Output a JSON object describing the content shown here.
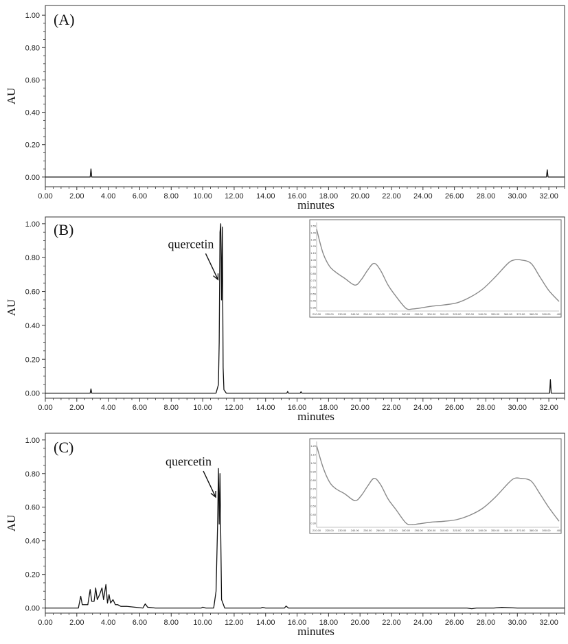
{
  "chart_data": [
    {
      "type": "line",
      "panel_label": "(A)",
      "xlabel": "minutes",
      "ylabel": "AU",
      "xlim": [
        0,
        33
      ],
      "ylim": [
        -0.06,
        1.06
      ],
      "x_ticks": [
        "0.00",
        "2.00",
        "4.00",
        "6.00",
        "8.00",
        "10.00",
        "12.00",
        "14.00",
        "16.00",
        "18.00",
        "20.00",
        "22.00",
        "24.00",
        "26.00",
        "28.00",
        "30.00",
        "32.00"
      ],
      "y_ticks": [
        "0.00",
        "0.20",
        "0.40",
        "0.60",
        "0.80",
        "1.00"
      ],
      "grid": false,
      "series": [
        {
          "x": [
            0,
            2.85,
            2.9,
            2.95,
            3.0,
            31.85,
            31.9,
            31.95,
            32.0,
            33
          ],
          "y": [
            0,
            0,
            0.05,
            0,
            0,
            0,
            0.045,
            0,
            0,
            0
          ]
        }
      ]
    },
    {
      "type": "line",
      "panel_label": "(B)",
      "xlabel": "minutes",
      "ylabel": "AU",
      "xlim": [
        0,
        33
      ],
      "ylim": [
        -0.03,
        1.04
      ],
      "x_ticks": [
        "0.00",
        "2.00",
        "4.00",
        "6.00",
        "8.00",
        "10.00",
        "12.00",
        "14.00",
        "16.00",
        "18.00",
        "20.00",
        "22.00",
        "24.00",
        "26.00",
        "28.00",
        "30.00",
        "32.00"
      ],
      "y_ticks": [
        "0.00",
        "0.20",
        "0.40",
        "0.60",
        "0.80",
        "1.00"
      ],
      "grid": false,
      "annotation": {
        "text": "quercetin",
        "x": 11.15,
        "y": 0.67
      },
      "series": [
        {
          "x": [
            0,
            2.85,
            2.9,
            2.95,
            10.85,
            11.0,
            11.05,
            11.1,
            11.15,
            11.2,
            11.25,
            11.3,
            11.35,
            11.5,
            15.35,
            15.4,
            15.45,
            16.2,
            16.25,
            16.3,
            32.05,
            32.1,
            32.15,
            33
          ],
          "y": [
            0,
            0,
            0.025,
            0,
            0,
            0.05,
            0.3,
            0.95,
            1.0,
            0.55,
            0.98,
            0.15,
            0.02,
            0,
            0,
            0.01,
            0,
            0,
            0.008,
            0,
            0,
            0.08,
            0,
            0
          ]
        }
      ],
      "inset": {
        "x_ticks": [
          "210.00",
          "220.00",
          "230.00",
          "240.00",
          "250.00",
          "260.00",
          "270.00",
          "280.00",
          "290.00",
          "300.00",
          "310.00",
          "320.00",
          "330.00",
          "340.00",
          "350.00",
          "360.00",
          "370.00",
          "380.00",
          "390.00",
          "400"
        ],
        "y_ticks": [
          "1.55",
          "1.45",
          "1.35",
          "1.25",
          "1.15",
          "1.05",
          "0.95",
          "0.85",
          "0.75",
          "0.65",
          "0.55",
          "0.45",
          "0.35"
        ],
        "xlim": [
          210,
          400
        ],
        "ylim": [
          0.3,
          1.6
        ],
        "series": [
          {
            "x": [
              210,
              215,
              220,
              225,
              232,
              240,
              245,
              250,
              255,
              260,
              266,
              272,
              280,
              285,
              290,
              300,
              310,
              320,
              330,
              340,
              350,
              360,
              365,
              370,
              378,
              385,
              392,
              400
            ],
            "y": [
              1.5,
              1.15,
              0.96,
              0.87,
              0.78,
              0.68,
              0.76,
              0.9,
              1.0,
              0.9,
              0.68,
              0.52,
              0.34,
              0.33,
              0.34,
              0.37,
              0.39,
              0.42,
              0.5,
              0.62,
              0.8,
              1.0,
              1.05,
              1.05,
              1.0,
              0.8,
              0.6,
              0.44
            ]
          }
        ]
      }
    },
    {
      "type": "line",
      "panel_label": "(C)",
      "xlabel": "minutes",
      "ylabel": "AU",
      "xlim": [
        0,
        33
      ],
      "ylim": [
        -0.03,
        1.04
      ],
      "x_ticks": [
        "0.00",
        "2.00",
        "4.00",
        "6.00",
        "8.00",
        "10.00",
        "12.00",
        "14.00",
        "16.00",
        "18.00",
        "20.00",
        "22.00",
        "24.00",
        "26.00",
        "28.00",
        "30.00",
        "32.00"
      ],
      "y_ticks": [
        "0.00",
        "0.20",
        "0.40",
        "0.60",
        "0.80",
        "1.00"
      ],
      "grid": false,
      "annotation": {
        "text": "quercetin",
        "x": 11.0,
        "y": 0.66
      },
      "series": [
        {
          "x": [
            0,
            2.1,
            2.25,
            2.35,
            2.5,
            2.7,
            2.85,
            2.95,
            3.1,
            3.2,
            3.3,
            3.45,
            3.6,
            3.7,
            3.85,
            3.95,
            4.05,
            4.15,
            4.3,
            4.45,
            4.6,
            4.8,
            5.2,
            6.2,
            6.35,
            6.5,
            7.0,
            8.5,
            9.9,
            10.0,
            10.2,
            10.7,
            10.85,
            10.95,
            11.0,
            11.05,
            11.1,
            11.2,
            11.4,
            13.7,
            13.8,
            14.0,
            15.2,
            15.3,
            15.45,
            16.0,
            26.8,
            27.1,
            27.4,
            28.5,
            29.0,
            30.0,
            33
          ],
          "y": [
            0,
            0,
            0.07,
            0.02,
            0.02,
            0.02,
            0.11,
            0.04,
            0.04,
            0.12,
            0.05,
            0.08,
            0.12,
            0.05,
            0.14,
            0.03,
            0.08,
            0.03,
            0.05,
            0.02,
            0.02,
            0.01,
            0.01,
            0.0,
            0.025,
            0.005,
            0.0,
            0.0,
            0.0,
            0.005,
            0.0,
            0.0,
            0.1,
            0.5,
            0.83,
            0.5,
            0.8,
            0.05,
            0.0,
            0.0,
            0.004,
            0.0,
            0.0,
            0.012,
            0.0,
            0.0,
            0.0,
            -0.004,
            0.0,
            0.0,
            0.004,
            0.0,
            0.0
          ]
        }
      ],
      "inset": {
        "x_ticks": [
          "210.00",
          "220.00",
          "230.00",
          "240.00",
          "250.00",
          "260.00",
          "270.00",
          "280.00",
          "290.00",
          "300.00",
          "310.00",
          "320.00",
          "330.00",
          "340.00",
          "350.00",
          "360.00",
          "370.00",
          "380.00",
          "390.00",
          "400"
        ],
        "y_ticks": [
          "1.20",
          "1.10",
          "1.00",
          "0.90",
          "0.80",
          "0.70",
          "0.60",
          "0.50",
          "0.40",
          "0.30"
        ],
        "xlim": [
          210,
          400
        ],
        "ylim": [
          0.25,
          1.25
        ],
        "series": [
          {
            "x": [
              210,
              215,
              220,
              225,
              232,
              240,
              245,
              250,
              255,
              260,
              266,
              272,
              280,
              285,
              290,
              300,
              310,
              320,
              330,
              340,
              350,
              360,
              365,
              370,
              378,
              385,
              392,
              400
            ],
            "y": [
              1.2,
              0.95,
              0.78,
              0.7,
              0.64,
              0.56,
              0.62,
              0.73,
              0.82,
              0.75,
              0.58,
              0.46,
              0.3,
              0.28,
              0.29,
              0.31,
              0.32,
              0.34,
              0.39,
              0.47,
              0.6,
              0.76,
              0.82,
              0.82,
              0.79,
              0.64,
              0.48,
              0.32
            ]
          }
        ]
      }
    }
  ]
}
